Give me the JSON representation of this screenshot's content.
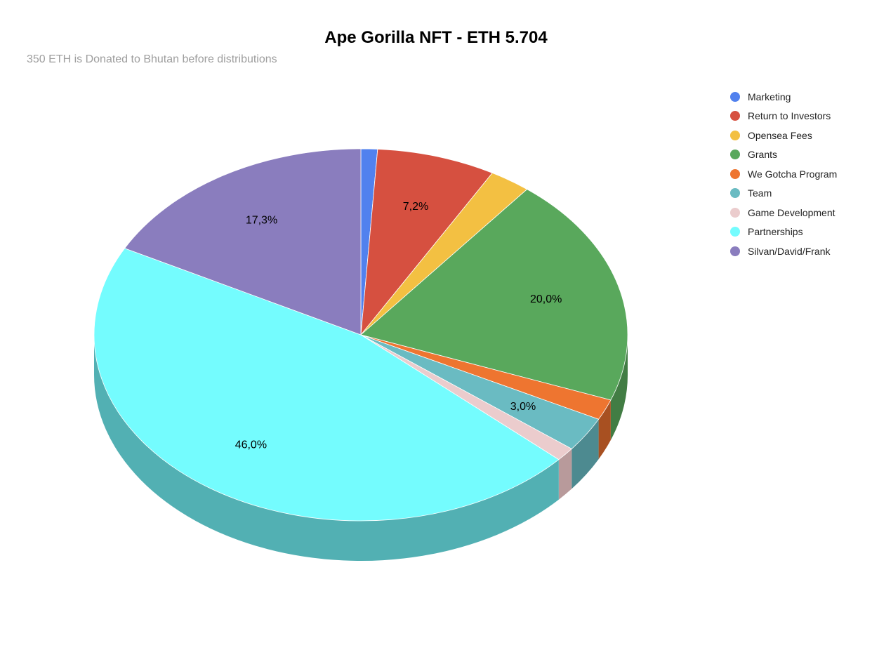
{
  "chart_data": {
    "type": "pie",
    "title": "Ape Gorilla NFT - ETH 5.704",
    "subtitle": "350 ETH is Donated to Bhutan before distributions",
    "legend_position": "right",
    "three_d": true,
    "slices": [
      {
        "label": "Marketing",
        "value": 1.0,
        "color": "#5181ee",
        "side_color": "#3c62b3",
        "data_label": ""
      },
      {
        "label": "Return to Investors",
        "value": 7.2,
        "color": "#d65040",
        "side_color": "#a03a2e",
        "data_label": "7,2%"
      },
      {
        "label": "Opensea Fees",
        "value": 2.5,
        "color": "#f3c042",
        "side_color": "#b58e2f",
        "data_label": ""
      },
      {
        "label": "Grants",
        "value": 20.0,
        "color": "#59a85c",
        "side_color": "#427d44",
        "data_label": "20,0%"
      },
      {
        "label": "We Gotcha Program",
        "value": 1.8,
        "color": "#ee7530",
        "side_color": "#a85021",
        "data_label": ""
      },
      {
        "label": "Team",
        "value": 3.0,
        "color": "#6abbc2",
        "side_color": "#4d8a90",
        "data_label": "3,0%"
      },
      {
        "label": "Game Development",
        "value": 1.2,
        "color": "#ebcccd",
        "side_color": "#b89a9b",
        "data_label": ""
      },
      {
        "label": "Partnerships",
        "value": 46.0,
        "color": "#74fcfe",
        "side_color": "#52b0b3",
        "data_label": "46,0%"
      },
      {
        "label": "Silvan/David/Frank",
        "value": 17.3,
        "color": "#8a7dbe",
        "side_color": "#655b8c",
        "data_label": "17,3%"
      }
    ]
  }
}
